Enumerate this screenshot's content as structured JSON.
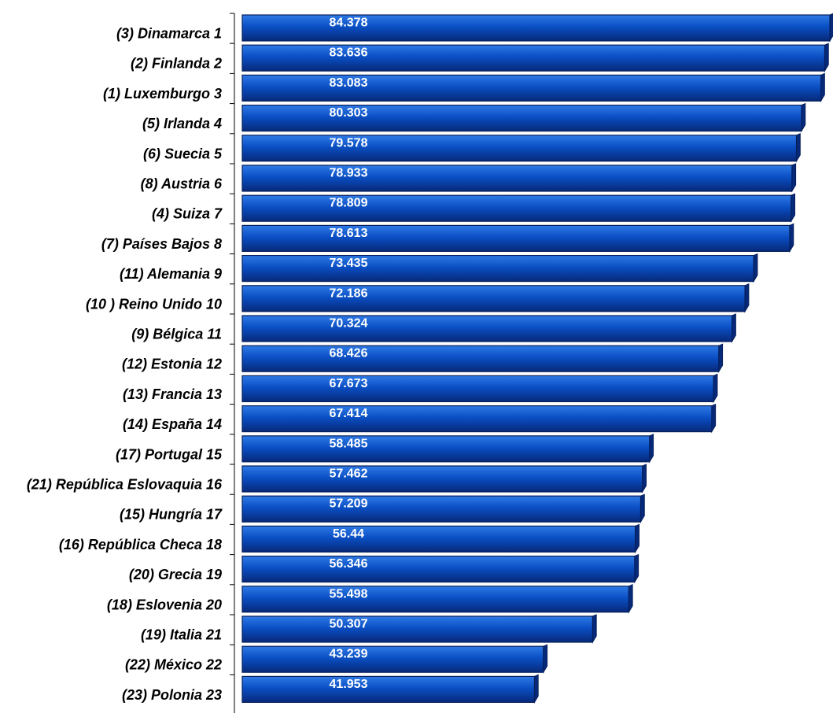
{
  "chart_data": {
    "type": "bar",
    "orientation": "horizontal",
    "categories": [
      "(3) Dinamarca 1",
      "(2) Finlanda 2",
      "(1) Luxemburgo 3",
      "(5) Irlanda 4",
      "(6) Suecia 5",
      "(8) Austria 6",
      "(4) Suiza 7",
      "(7) Países Bajos 8",
      "(11) Alemania 9",
      "(10 ) Reino Unido 10",
      "(9) Bélgica 11",
      "(12) Estonia 12",
      "(13) Francia 13",
      "(14) España 14",
      "(17) Portugal 15",
      "(21) República Eslovaquia 16",
      "(15) Hungría 17",
      "(16) República Checa 18",
      "(20) Grecia 19",
      "(18) Eslovenia 20",
      "(19) Italia 21",
      "(22) México 22",
      "(23) Polonia 23"
    ],
    "values": [
      84.378,
      83.636,
      83.083,
      80.303,
      79.578,
      78.933,
      78.809,
      78.613,
      73.435,
      72.186,
      70.324,
      68.426,
      67.673,
      67.414,
      58.485,
      57.462,
      57.209,
      56.44,
      56.346,
      55.498,
      50.307,
      43.239,
      41.953
    ],
    "value_labels": [
      "84.378",
      "83.636",
      "83.083",
      "80.303",
      "79.578",
      "78.933",
      "78.809",
      "78.613",
      "73.435",
      "72.186",
      "70.324",
      "68.426",
      "67.673",
      "67.414",
      "58.485",
      "57.462",
      "57.209",
      "56.44",
      "56.346",
      "55.498",
      "50.307",
      "43.239",
      "41.953"
    ],
    "title": "",
    "xlabel": "",
    "ylabel": "",
    "xlim": [
      0,
      84.378
    ],
    "grid": false,
    "bar_color": "#0a4fc4",
    "bar_highlight": "#2f7ae6",
    "bar_shadow": "#07297a",
    "bar_outline": "#061f5a"
  }
}
